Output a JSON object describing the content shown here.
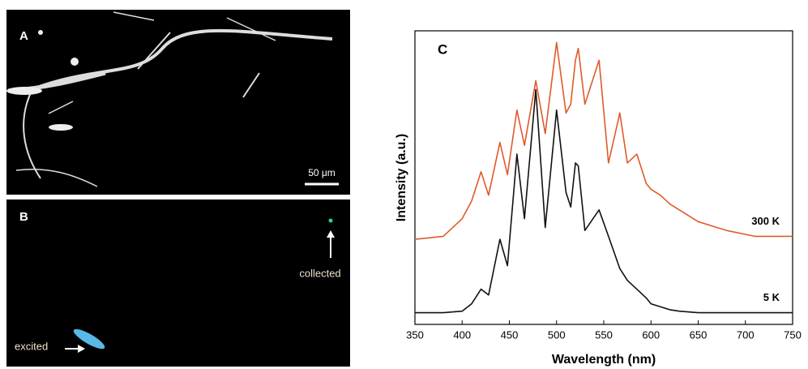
{
  "panels": {
    "a": {
      "label": "A",
      "scale_bar": "50 μm"
    },
    "b": {
      "label": "B",
      "collected": "collected",
      "excited": "excited"
    }
  },
  "chart_data": {
    "type": "line",
    "panel_label": "C",
    "x_label": "Wavelength (nm)",
    "y_label": "Intensity (a.u.)",
    "x": [
      350,
      380,
      400,
      410,
      420,
      428,
      440,
      448,
      458,
      466,
      478,
      488,
      500,
      510,
      515,
      520,
      523,
      530,
      545,
      555,
      567,
      575,
      585,
      595,
      600,
      610,
      620,
      630,
      650,
      680,
      710,
      750
    ],
    "series": [
      {
        "name": "300 K",
        "color": "#e05a2b",
        "values": [
          2.9,
          3.0,
          3.6,
          4.2,
          5.2,
          4.4,
          6.2,
          5.1,
          7.3,
          6.1,
          8.3,
          6.5,
          9.6,
          7.2,
          7.5,
          9.0,
          9.4,
          7.5,
          9.0,
          5.5,
          7.2,
          5.5,
          5.8,
          4.8,
          4.6,
          4.4,
          4.1,
          3.9,
          3.5,
          3.2,
          3.0,
          3.0
        ]
      },
      {
        "name": "5 K",
        "color": "#111111",
        "values": [
          0.4,
          0.4,
          0.45,
          0.7,
          1.2,
          1.0,
          2.9,
          2.0,
          5.8,
          3.6,
          8.0,
          3.3,
          7.3,
          4.5,
          4.0,
          5.5,
          5.4,
          3.2,
          3.9,
          3.0,
          1.9,
          1.5,
          1.2,
          0.9,
          0.7,
          0.6,
          0.5,
          0.45,
          0.4,
          0.4,
          0.4,
          0.4
        ]
      }
    ],
    "xlim": [
      350,
      750
    ],
    "xticks": [
      350,
      400,
      450,
      500,
      550,
      600,
      650,
      700,
      750
    ],
    "ylim": [
      0,
      10
    ]
  }
}
